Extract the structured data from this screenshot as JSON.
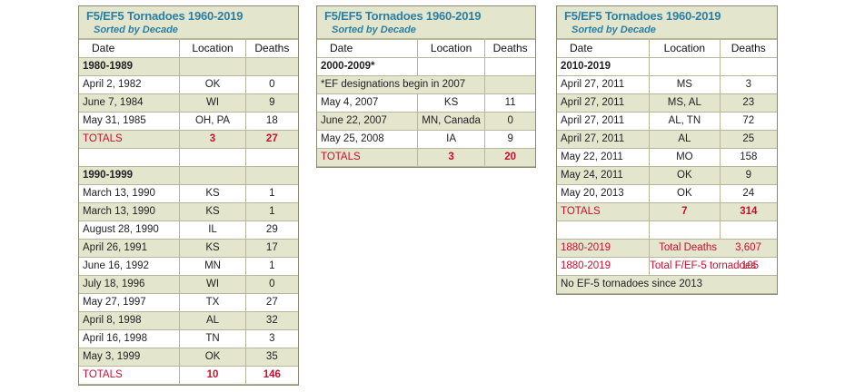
{
  "panels": [
    {
      "title": "F5/EF5 Tornadoes 1960-2019",
      "subtitle": "Sorted by Decade",
      "columns": [
        "Date",
        "Location",
        "Deaths"
      ],
      "decade1": {
        "label": "1980-1989",
        "rows": [
          [
            "April 2, 1982",
            "OK",
            "0"
          ],
          [
            "June 7, 1984",
            "WI",
            "9"
          ],
          [
            "May 31, 1985",
            "OH, PA",
            "18"
          ]
        ],
        "totals": [
          "TOTALS",
          "3",
          "27"
        ]
      },
      "decade2": {
        "label": "1990-1999",
        "rows": [
          [
            "March 13, 1990",
            "KS",
            "1"
          ],
          [
            "March 13, 1990",
            "KS",
            "1"
          ],
          [
            "August 28, 1990",
            "IL",
            "29"
          ],
          [
            "April 26, 1991",
            "KS",
            "17"
          ],
          [
            "June 16, 1992",
            "MN",
            "1"
          ],
          [
            "July 18, 1996",
            "WI",
            "0"
          ],
          [
            "May 27, 1997",
            "TX",
            "27"
          ],
          [
            "April 8, 1998",
            "AL",
            "32"
          ],
          [
            "April 16, 1998",
            "TN",
            "3"
          ],
          [
            "May 3, 1999",
            "OK",
            "35"
          ]
        ],
        "totals": [
          "TOTALS",
          "10",
          "146"
        ]
      }
    },
    {
      "title": "F5/EF5 Tornadoes 1960-2019",
      "subtitle": "Sorted by Decade",
      "columns": [
        "Date",
        "Location",
        "Deaths"
      ],
      "decade1": {
        "label": "2000-2009*",
        "note": "*EF designations begin in 2007",
        "rows": [
          [
            "May 4, 2007",
            "KS",
            "11"
          ],
          [
            "June 22, 2007",
            "MN, Canada",
            "0"
          ],
          [
            "May 25, 2008",
            "IA",
            "9"
          ]
        ],
        "totals": [
          "TOTALS",
          "3",
          "20"
        ]
      }
    },
    {
      "title": "F5/EF5 Tornadoes 1960-2019",
      "subtitle": "Sorted by Decade",
      "columns": [
        "Date",
        "Location",
        "Deaths"
      ],
      "decade1": {
        "label": "2010-2019",
        "rows": [
          [
            "April 27, 2011",
            "MS",
            "3"
          ],
          [
            "April 27, 2011",
            "MS, AL",
            "23"
          ],
          [
            "April 27, 2011",
            "AL, TN",
            "72"
          ],
          [
            "April 27, 2011",
            "AL",
            "25"
          ],
          [
            "May 22, 2011",
            "MO",
            "158"
          ],
          [
            "May 24, 2011",
            "OK",
            "9"
          ],
          [
            "May 20, 2013",
            "OK",
            "24"
          ]
        ],
        "totals": [
          "TOTALS",
          "7",
          "314"
        ]
      },
      "summary": {
        "deaths": [
          "1880-2019",
          "Total Deaths",
          "3,607"
        ],
        "tornadoes": [
          "1880-2019",
          "Total F/EF-5 tornadoes",
          "105"
        ],
        "note": "No EF-5 tornadoes since 2013"
      }
    }
  ],
  "colors": {
    "accent": "#2b7fa3",
    "shade": "#e4e5cd",
    "totals": "#c8102e",
    "border": "#8a8a72"
  }
}
